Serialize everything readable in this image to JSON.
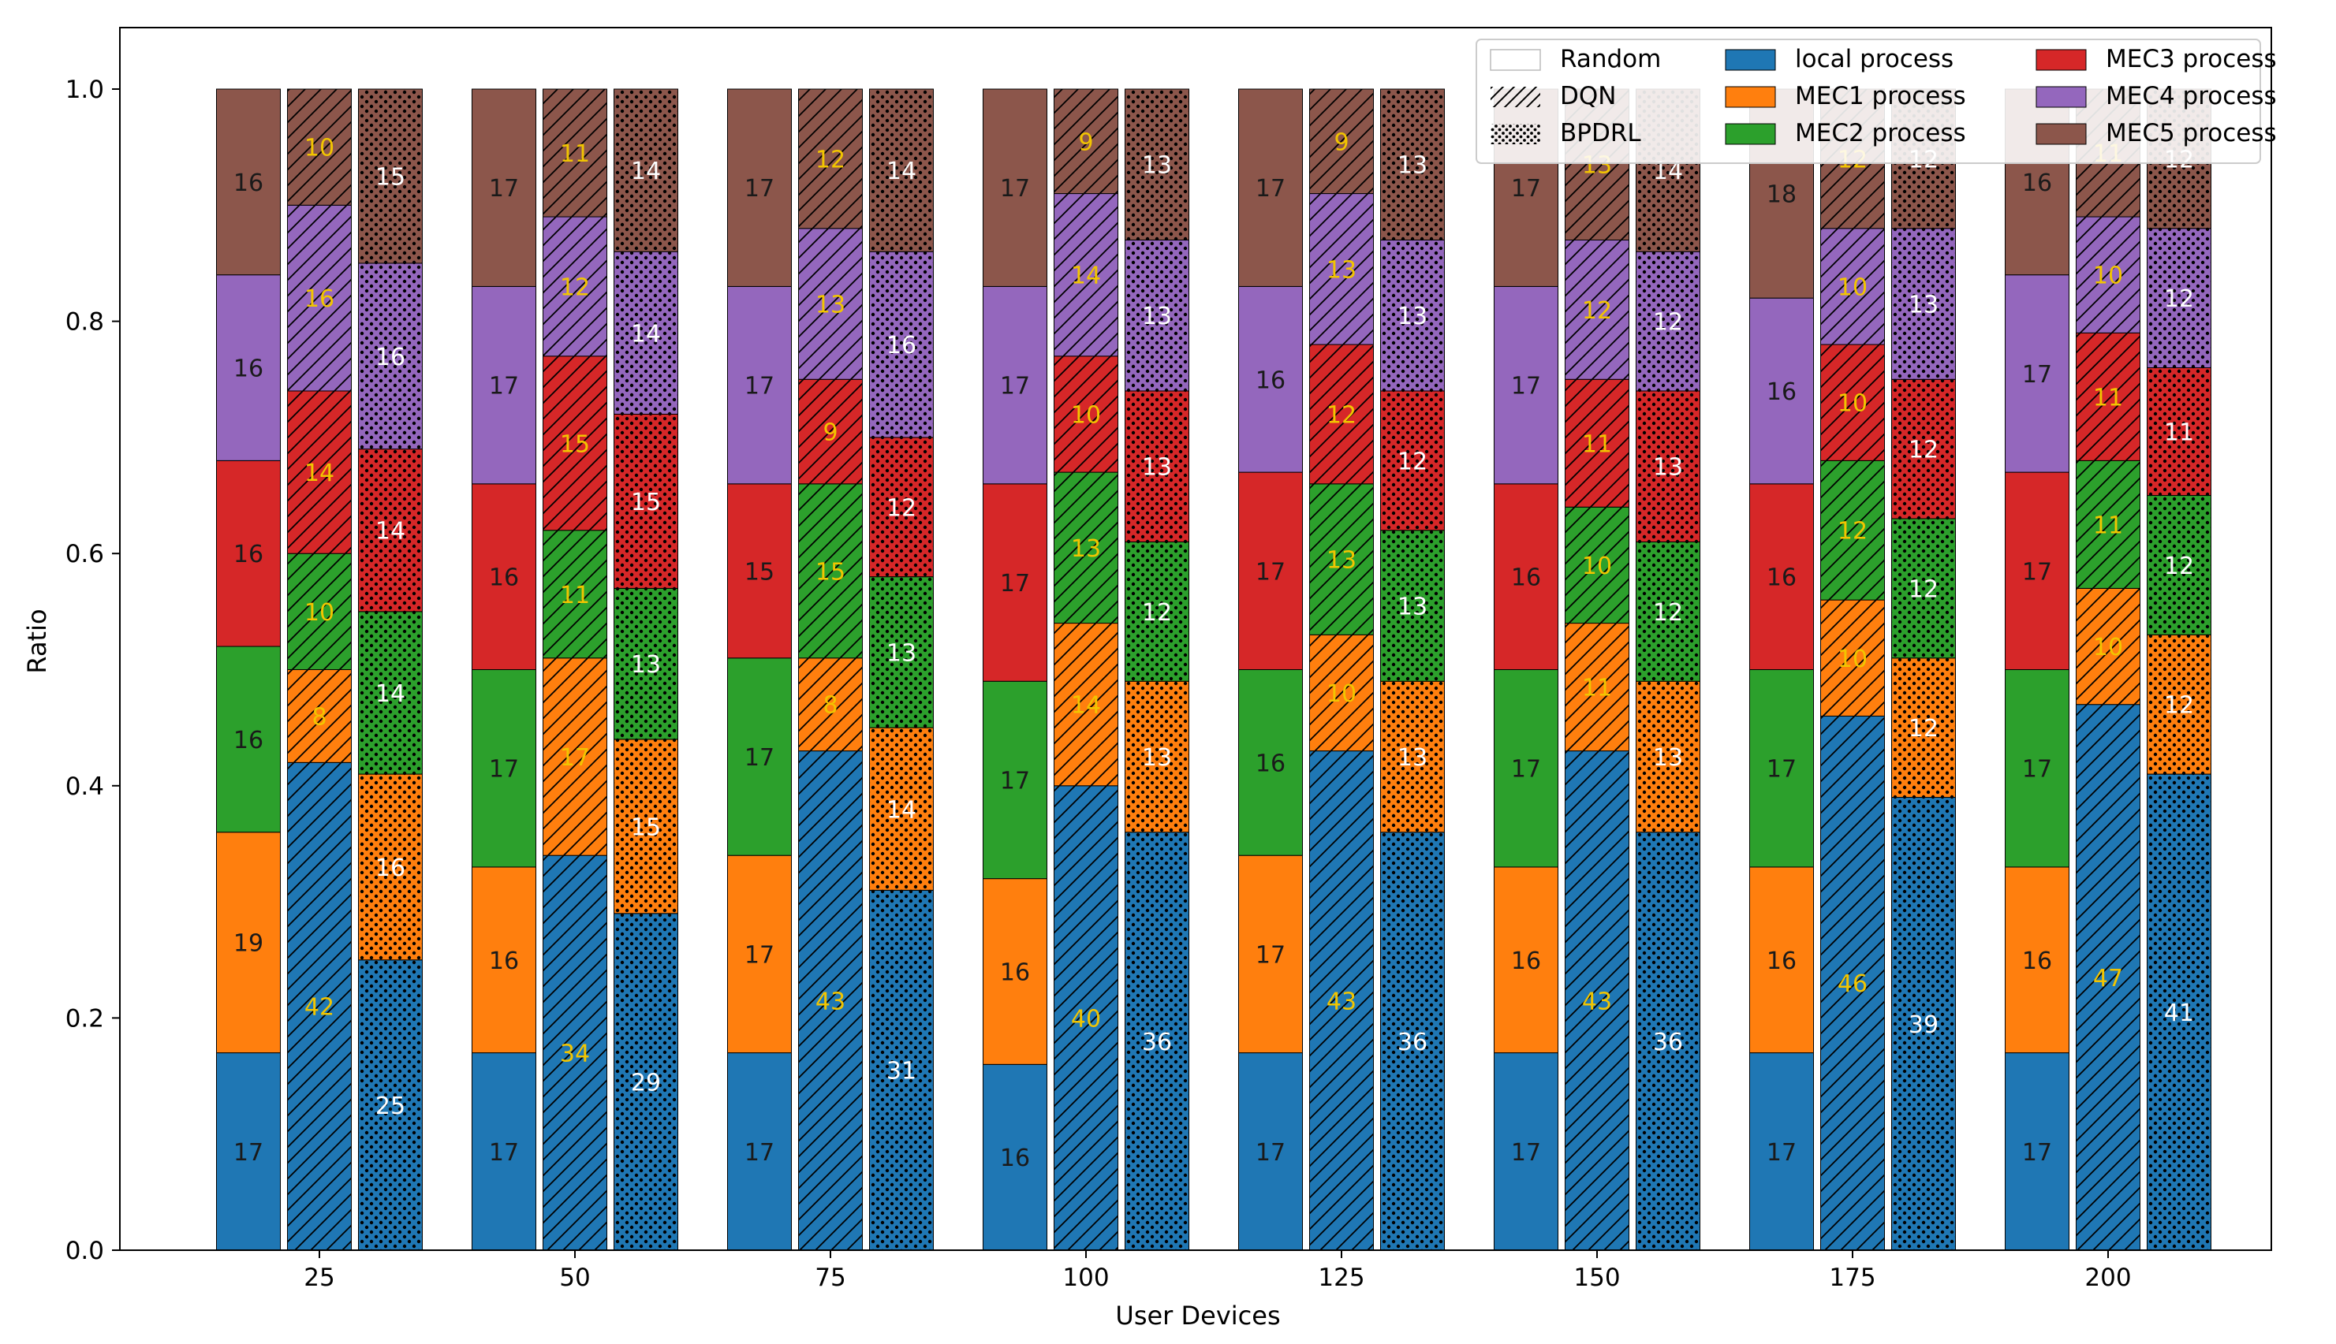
{
  "chart_data": {
    "type": "bar",
    "stacked": true,
    "grouped": true,
    "title": "",
    "xlabel": "User Devices",
    "ylabel": "Ratio",
    "ylim": [
      0,
      1.0
    ],
    "yticks": [
      "0.0",
      "0.2",
      "0.4",
      "0.6",
      "0.8",
      "1.0"
    ],
    "categories": [
      "25",
      "50",
      "75",
      "100",
      "125",
      "150",
      "175",
      "200"
    ],
    "methods": [
      {
        "name": "Random",
        "pattern": "none",
        "label_color": "#1a1a1a"
      },
      {
        "name": "DQN",
        "pattern": "hatch",
        "label_color": "#f2c500"
      },
      {
        "name": "BPDRL",
        "pattern": "dots",
        "label_color": "#ffffff"
      }
    ],
    "segments": [
      {
        "name": "local process",
        "color": "#1f77b4"
      },
      {
        "name": "MEC1 process",
        "color": "#ff7f0e"
      },
      {
        "name": "MEC2 process",
        "color": "#2ca02c"
      },
      {
        "name": "MEC3 process",
        "color": "#d62728"
      },
      {
        "name": "MEC4 process",
        "color": "#9467bd"
      },
      {
        "name": "MEC5 process",
        "color": "#8c564b"
      }
    ],
    "percent_values": {
      "Random": [
        [
          17,
          19,
          16,
          16,
          16,
          16
        ],
        [
          17,
          16,
          17,
          16,
          17,
          17
        ],
        [
          17,
          17,
          17,
          15,
          17,
          17
        ],
        [
          16,
          16,
          17,
          17,
          17,
          17
        ],
        [
          17,
          17,
          16,
          17,
          16,
          17
        ],
        [
          17,
          16,
          17,
          16,
          17,
          17
        ],
        [
          17,
          16,
          17,
          16,
          16,
          18
        ],
        [
          17,
          16,
          17,
          17,
          17,
          16
        ]
      ],
      "DQN": [
        [
          42,
          8,
          10,
          14,
          16,
          10
        ],
        [
          34,
          17,
          11,
          15,
          12,
          11
        ],
        [
          43,
          8,
          15,
          9,
          13,
          12
        ],
        [
          40,
          14,
          13,
          10,
          14,
          9
        ],
        [
          43,
          10,
          13,
          12,
          13,
          9
        ],
        [
          43,
          11,
          10,
          11,
          12,
          13
        ],
        [
          46,
          10,
          12,
          10,
          10,
          12
        ],
        [
          47,
          10,
          11,
          11,
          10,
          11
        ]
      ],
      "BPDRL": [
        [
          25,
          16,
          14,
          14,
          16,
          15
        ],
        [
          29,
          15,
          13,
          15,
          14,
          14
        ],
        [
          31,
          14,
          13,
          12,
          16,
          14
        ],
        [
          36,
          13,
          12,
          13,
          13,
          13
        ],
        [
          36,
          13,
          13,
          12,
          13,
          13
        ],
        [
          36,
          13,
          12,
          13,
          12,
          14
        ],
        [
          39,
          12,
          12,
          12,
          13,
          12
        ],
        [
          41,
          12,
          12,
          11,
          12,
          12
        ]
      ]
    }
  }
}
